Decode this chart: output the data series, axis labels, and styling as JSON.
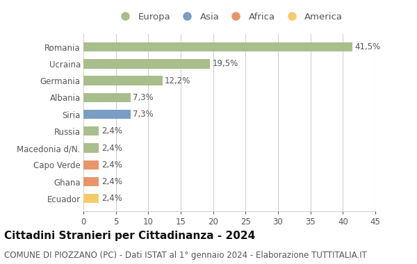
{
  "categories": [
    "Romania",
    "Ucraina",
    "Germania",
    "Albania",
    "Siria",
    "Russia",
    "Macedonia d/N.",
    "Capo Verde",
    "Ghana",
    "Ecuador"
  ],
  "values": [
    41.5,
    19.5,
    12.2,
    7.3,
    7.3,
    2.4,
    2.4,
    2.4,
    2.4,
    2.4
  ],
  "labels": [
    "41,5%",
    "19,5%",
    "12,2%",
    "7,3%",
    "7,3%",
    "2,4%",
    "2,4%",
    "2,4%",
    "2,4%",
    "2,4%"
  ],
  "colors": [
    "#a8be8c",
    "#a8be8c",
    "#a8be8c",
    "#a8be8c",
    "#7b9dc4",
    "#a8be8c",
    "#a8be8c",
    "#e8956a",
    "#e8956a",
    "#f5cb6a"
  ],
  "legend_labels": [
    "Europa",
    "Asia",
    "Africa",
    "America"
  ],
  "legend_colors": [
    "#a8be8c",
    "#7b9dc4",
    "#e8956a",
    "#f5cb6a"
  ],
  "title": "Cittadini Stranieri per Cittadinanza - 2024",
  "subtitle": "COMUNE DI PIOZZANO (PC) - Dati ISTAT al 1° gennaio 2024 - Elaborazione TUTTITALIA.IT",
  "xlim": [
    0,
    45
  ],
  "xticks": [
    0,
    5,
    10,
    15,
    20,
    25,
    30,
    35,
    40,
    45
  ],
  "background_color": "#ffffff",
  "grid_color": "#d0d0d0",
  "bar_height": 0.55,
  "title_fontsize": 11,
  "subtitle_fontsize": 8.5,
  "label_fontsize": 8.5,
  "tick_fontsize": 8.5,
  "legend_fontsize": 9.5
}
